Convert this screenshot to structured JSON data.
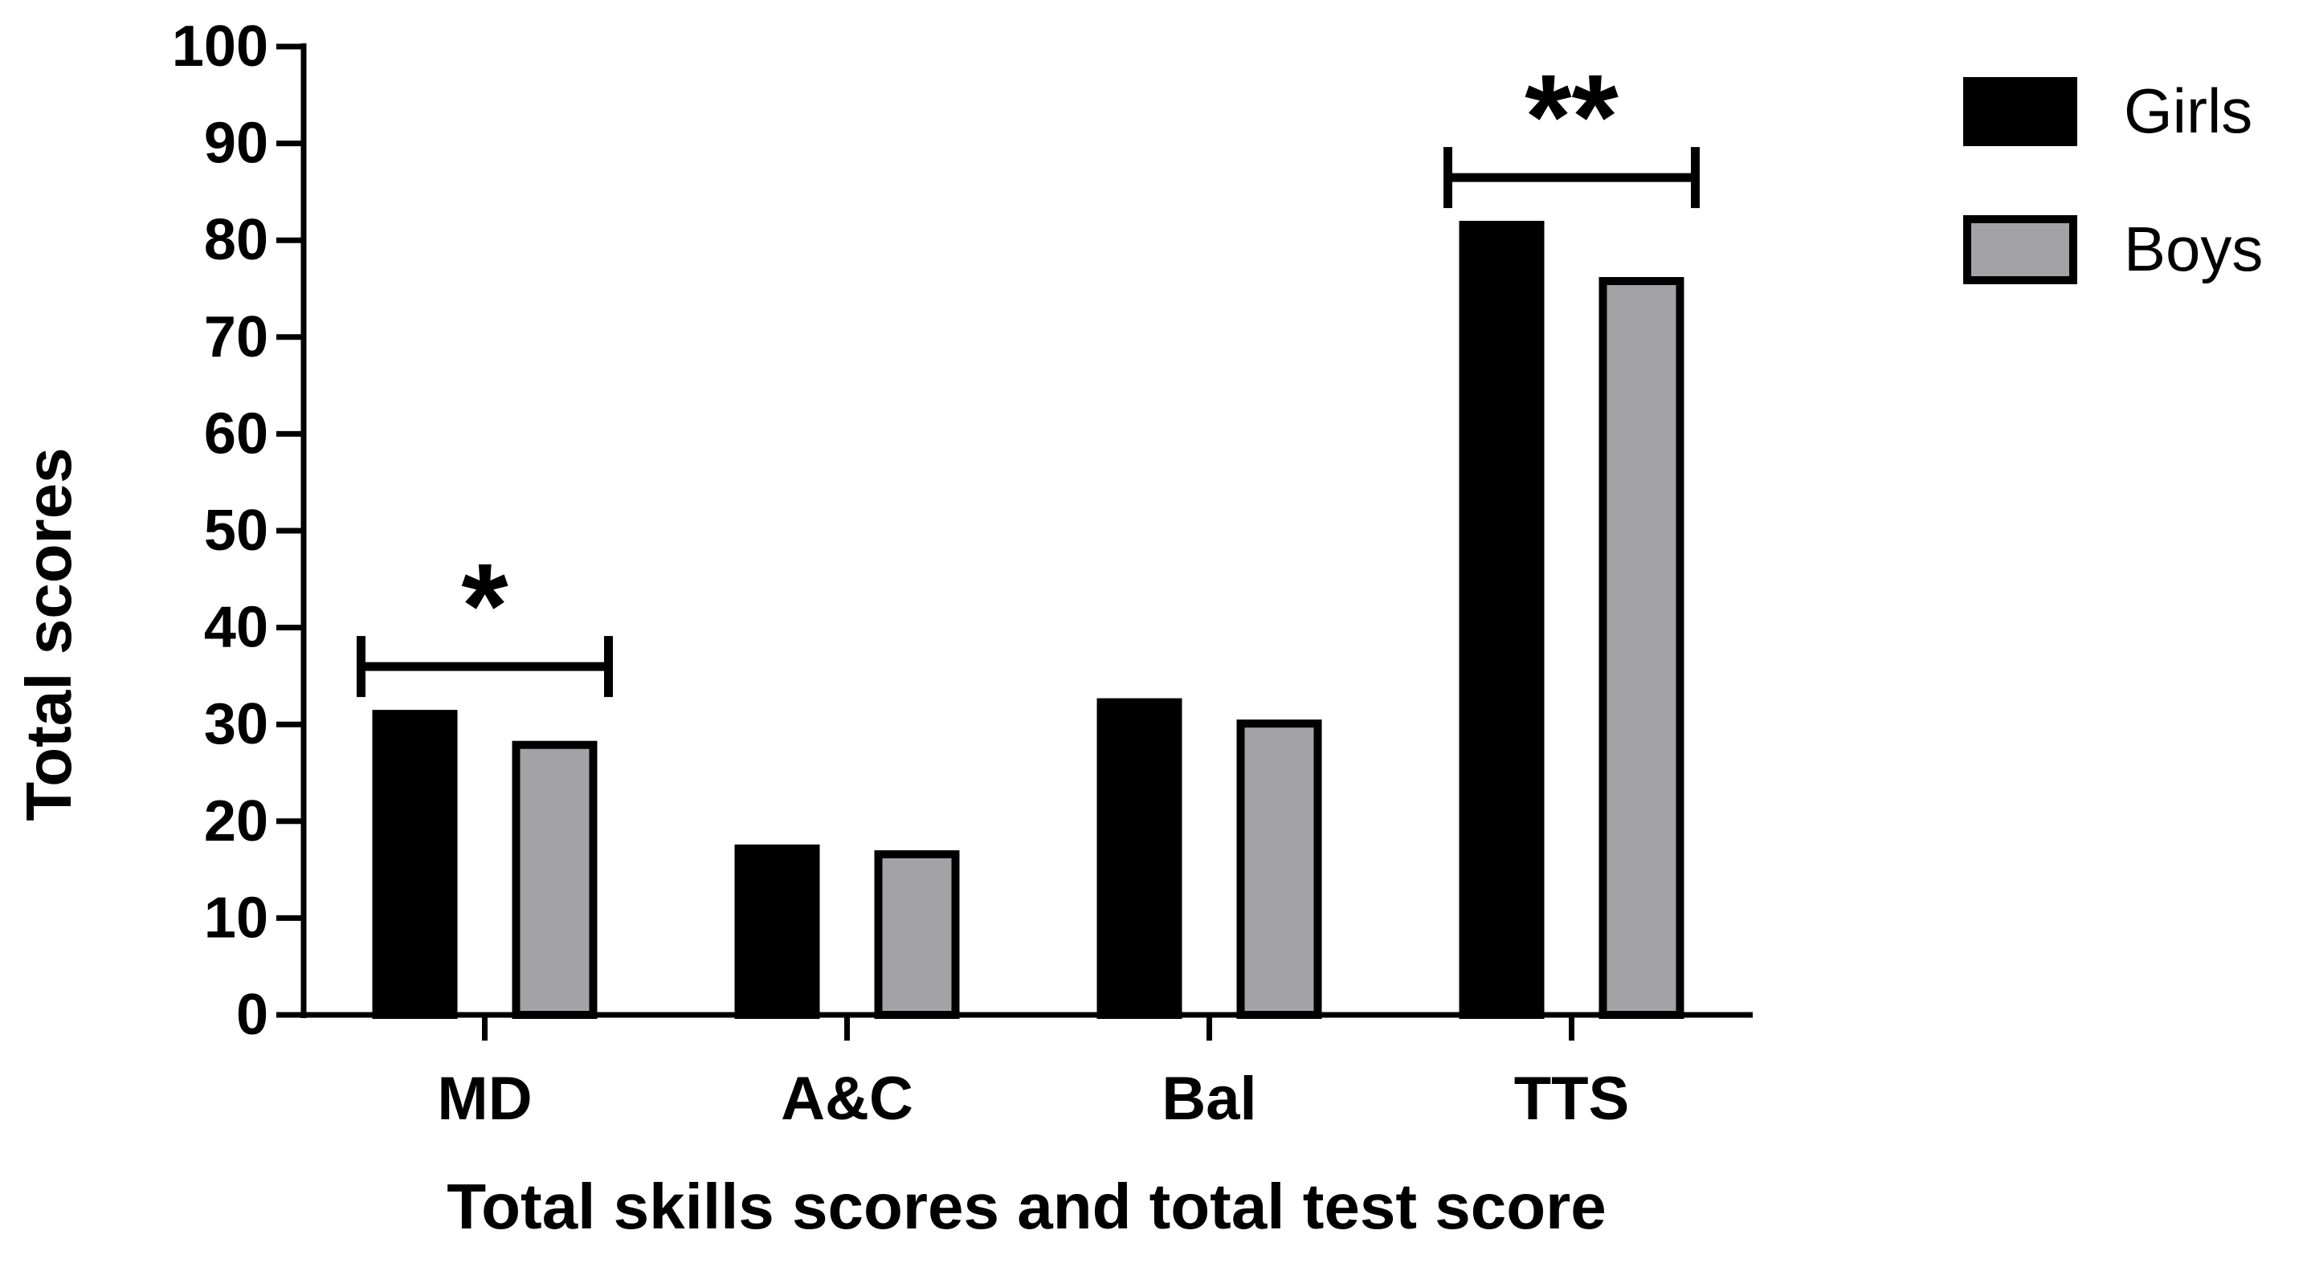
{
  "chart_data": {
    "type": "bar",
    "title": "",
    "xlabel": "Total skills scores and total test score",
    "ylabel": "Total scores",
    "ylim": [
      0,
      100
    ],
    "yticks": [
      0,
      10,
      20,
      30,
      40,
      50,
      60,
      70,
      80,
      90,
      100
    ],
    "categories": [
      "MD",
      "A&C",
      "Bal",
      "TTS"
    ],
    "series": [
      {
        "name": "Girls",
        "color": "#000000",
        "values": [
          31.5,
          17.6,
          32.7,
          82.0
        ]
      },
      {
        "name": "Boys",
        "color": "#a3a3a6",
        "values": [
          28.3,
          17.0,
          30.5,
          76.2
        ]
      }
    ],
    "legend_position": "top-right",
    "grid": false,
    "annotations": [
      {
        "category": "MD",
        "text": "*"
      },
      {
        "category": "TTS",
        "text": "**"
      }
    ]
  }
}
